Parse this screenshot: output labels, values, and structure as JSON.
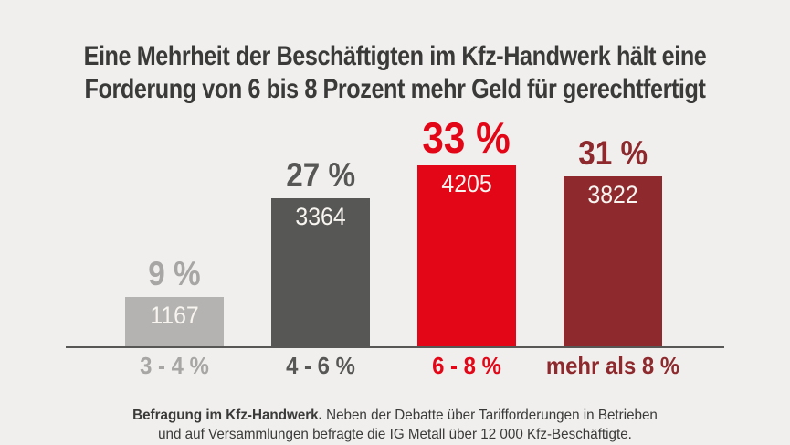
{
  "page": {
    "background": "#f0efee",
    "text_color": "#3a3a39"
  },
  "title": {
    "line1": "Eine Mehrheit der Beschäftigten im Kfz-Handwerk hält eine",
    "line2": "Forderung von 6 bis 8 Prozent mehr Geld für gerechtfertigt"
  },
  "chart_data": {
    "type": "bar",
    "title": "Eine Mehrheit der Beschäftigten im Kfz-Handwerk hält eine Forderung von 6 bis 8 Prozent mehr Geld für gerechtfertigt",
    "categories": [
      "3 - 4 %",
      "4 - 6 %",
      "6 - 8 %",
      "mehr als 8 %"
    ],
    "values": [
      9,
      27,
      33,
      31
    ],
    "percent_labels": [
      "9 %",
      "27 %",
      "33 %",
      "31 %"
    ],
    "counts": [
      "1167",
      "3364",
      "4205",
      "3822"
    ],
    "colors": [
      "#b5b3b1",
      "#575756",
      "#e30617",
      "#8e2a2e"
    ],
    "label_colors": [
      "#a8a6a4",
      "#575756",
      "#e30617",
      "#8e2a2e"
    ],
    "emphasis_index": 2,
    "xlabel": "",
    "ylabel": "",
    "ylim": [
      0,
      35
    ],
    "grid": false,
    "legend": false,
    "value_labels_inside_bars": true
  },
  "footer": {
    "lead": "Befragung im Kfz-Handwerk.",
    "line1_rest": " Neben der Debatte über Tarifforderungen in Betrieben",
    "line2": "und auf Versammlungen befragte die IG Metall über 12 000 Kfz-Beschäftigte."
  }
}
